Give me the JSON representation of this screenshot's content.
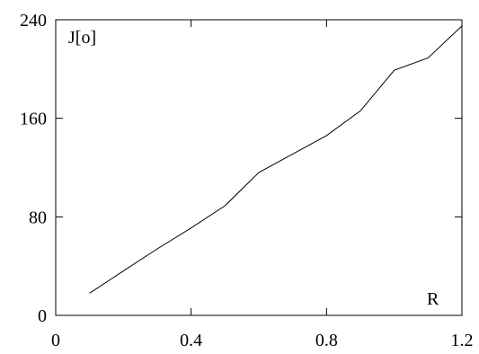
{
  "chart_data": {
    "type": "line",
    "title": "",
    "xlabel": "R",
    "ylabel": "J[o]",
    "xlim": [
      0,
      1.2
    ],
    "ylim": [
      0,
      240
    ],
    "grid": false,
    "x_ticks": [
      {
        "value": 0,
        "label": "0"
      },
      {
        "value": 0.4,
        "label": "0.4"
      },
      {
        "value": 0.8,
        "label": "0.8"
      },
      {
        "value": 1.2,
        "label": "1.2"
      }
    ],
    "y_ticks": [
      {
        "value": 0,
        "label": "0"
      },
      {
        "value": 80,
        "label": "80"
      },
      {
        "value": 160,
        "label": "160"
      },
      {
        "value": 240,
        "label": "240"
      }
    ],
    "series": [
      {
        "x": [
          0.1,
          0.2,
          0.3,
          0.4,
          0.5,
          0.6,
          0.7,
          0.8,
          0.9,
          1.0,
          1.1,
          1.2
        ],
        "y": [
          18,
          36,
          54,
          71,
          89,
          116,
          131,
          146,
          166,
          199,
          209,
          235
        ]
      }
    ]
  }
}
